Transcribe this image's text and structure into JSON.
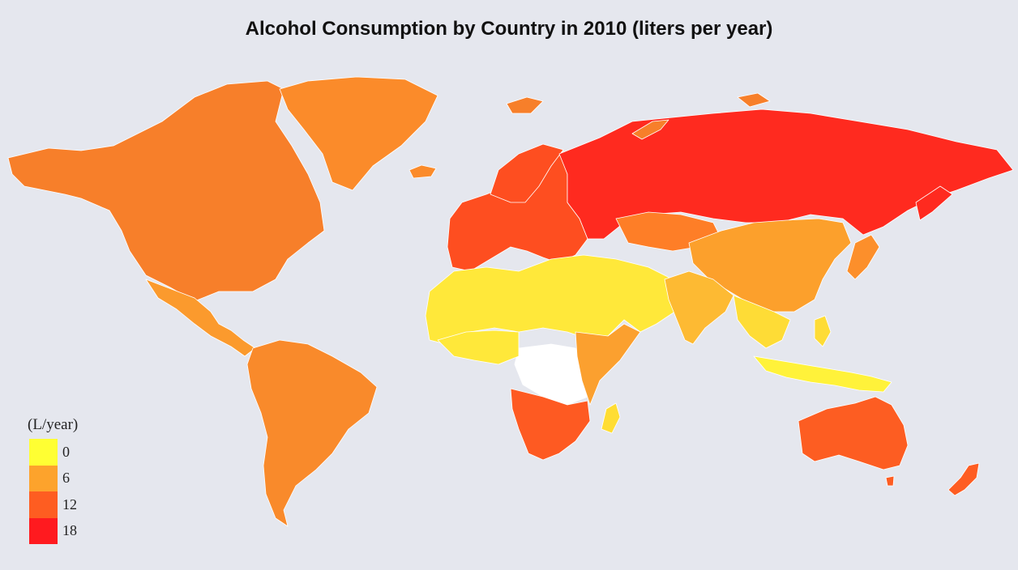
{
  "title": "Alcohol Consumption by Country in 2010 (liters per year)",
  "legend": {
    "title": "(L/year)",
    "items": [
      {
        "label": "0",
        "color": "#ffff33"
      },
      {
        "label": "6",
        "color": "#fda32c"
      },
      {
        "label": "12",
        "color": "#fe5d21"
      },
      {
        "label": "18",
        "color": "#ff1a1f"
      }
    ]
  },
  "colors": {
    "background": "#e5e7ee",
    "no_data": "#ffffff",
    "border": "#ffffff"
  },
  "regions": [
    {
      "name": "north-america",
      "level": "high-mid",
      "color": "#f77f2a"
    },
    {
      "name": "greenland",
      "level": "mid",
      "color": "#fb8b2a"
    },
    {
      "name": "iceland",
      "level": "mid",
      "color": "#fb8b2a"
    },
    {
      "name": "mexico-central-america",
      "level": "mid",
      "color": "#fb9a2d"
    },
    {
      "name": "south-america",
      "level": "mid",
      "color": "#f98a2b"
    },
    {
      "name": "europe",
      "level": "high",
      "color": "#fe4e20"
    },
    {
      "name": "russia",
      "level": "very-high",
      "color": "#ff2a1f"
    },
    {
      "name": "north-africa-middle-east",
      "level": "low",
      "color": "#ffe83a"
    },
    {
      "name": "central-africa",
      "level": "no-data",
      "color": "#ffffff"
    },
    {
      "name": "southern-africa",
      "level": "high",
      "color": "#fe5a22"
    },
    {
      "name": "east-africa",
      "level": "mid",
      "color": "#fba02f"
    },
    {
      "name": "central-asia",
      "level": "mid",
      "color": "#fe7e27"
    },
    {
      "name": "china",
      "level": "mid",
      "color": "#fca02c"
    },
    {
      "name": "india",
      "level": "low-mid",
      "color": "#fdba33"
    },
    {
      "name": "southeast-asia",
      "level": "low",
      "color": "#fedc36"
    },
    {
      "name": "indonesia",
      "level": "low",
      "color": "#fff23a"
    },
    {
      "name": "japan",
      "level": "mid",
      "color": "#fc8f2b"
    },
    {
      "name": "australia",
      "level": "high",
      "color": "#fd5d22"
    },
    {
      "name": "new-zealand",
      "level": "high",
      "color": "#fe5d22"
    },
    {
      "name": "madagascar",
      "level": "low",
      "color": "#ffdd33"
    }
  ]
}
